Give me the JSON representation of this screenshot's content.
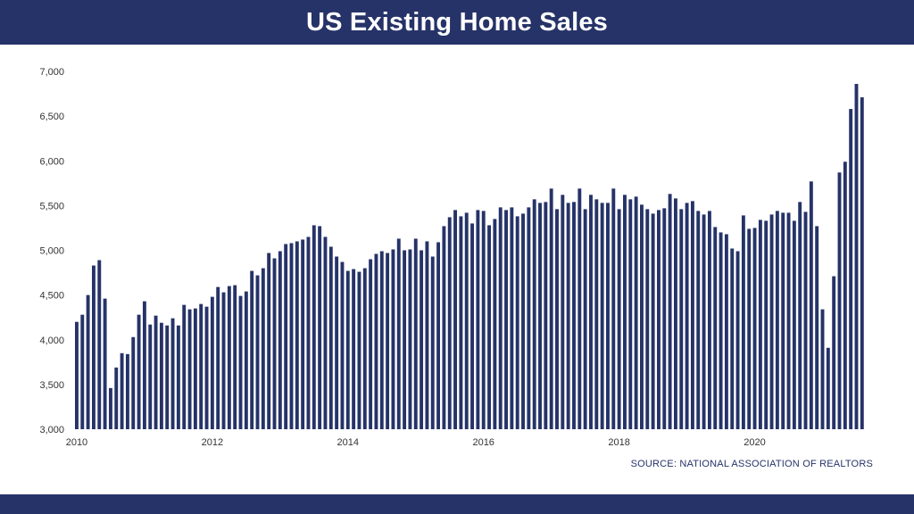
{
  "header": {
    "title": "US Existing Home Sales"
  },
  "footer": {
    "source": "SOURCE: NATIONAL ASSOCIATION OF REALTORS"
  },
  "colors": {
    "bar": "#263368",
    "banner": "#263368"
  },
  "chart_data": {
    "type": "bar",
    "title": "US Existing Home Sales",
    "xlabel": "",
    "ylabel": "",
    "ylim": [
      3000,
      7000
    ],
    "y_ticks": [
      3000,
      3500,
      4000,
      4500,
      5000,
      5500,
      6000,
      6500,
      7000
    ],
    "y_tick_labels": [
      "3,000",
      "3,500",
      "4,000",
      "4,500",
      "5,000",
      "5,500",
      "6,000",
      "6,500",
      "7,000"
    ],
    "x_tick_labels": [
      "2010",
      "2012",
      "2014",
      "2016",
      "2018",
      "2020"
    ],
    "x_tick_positions": [
      0,
      24,
      48,
      72,
      96,
      120
    ],
    "grid": false,
    "legend": "none",
    "frequency": "monthly",
    "start": "2010-01",
    "values": [
      4200,
      4280,
      4500,
      4830,
      4890,
      4460,
      3460,
      3690,
      3850,
      3840,
      4030,
      4280,
      4430,
      4170,
      4270,
      4190,
      4160,
      4240,
      4160,
      4390,
      4340,
      4350,
      4400,
      4370,
      4480,
      4590,
      4530,
      4600,
      4610,
      4490,
      4540,
      4770,
      4720,
      4800,
      4970,
      4910,
      4990,
      5070,
      5080,
      5100,
      5120,
      5150,
      5280,
      5270,
      5150,
      5040,
      4930,
      4870,
      4770,
      4790,
      4760,
      4800,
      4900,
      4960,
      4990,
      4970,
      5010,
      5130,
      5000,
      5010,
      5130,
      5000,
      5100,
      4930,
      5090,
      5270,
      5370,
      5450,
      5380,
      5420,
      5300,
      5450,
      5440,
      5280,
      5350,
      5480,
      5450,
      5480,
      5380,
      5410,
      5480,
      5570,
      5530,
      5540,
      5690,
      5460,
      5620,
      5530,
      5540,
      5690,
      5460,
      5620,
      5570,
      5530,
      5530,
      5690,
      5460,
      5620,
      5570,
      5600,
      5510,
      5460,
      5410,
      5450,
      5470,
      5630,
      5580,
      5460,
      5530,
      5550,
      5440,
      5400,
      5440,
      5260,
      5200,
      5180,
      5020,
      4990,
      5390,
      5240,
      5250,
      5340,
      5330,
      5400,
      5440,
      5420,
      5420,
      5330,
      5540,
      5430,
      5770,
      5270,
      4340,
      3910,
      4710,
      5870,
      5990,
      6580,
      6860,
      6710
    ]
  }
}
